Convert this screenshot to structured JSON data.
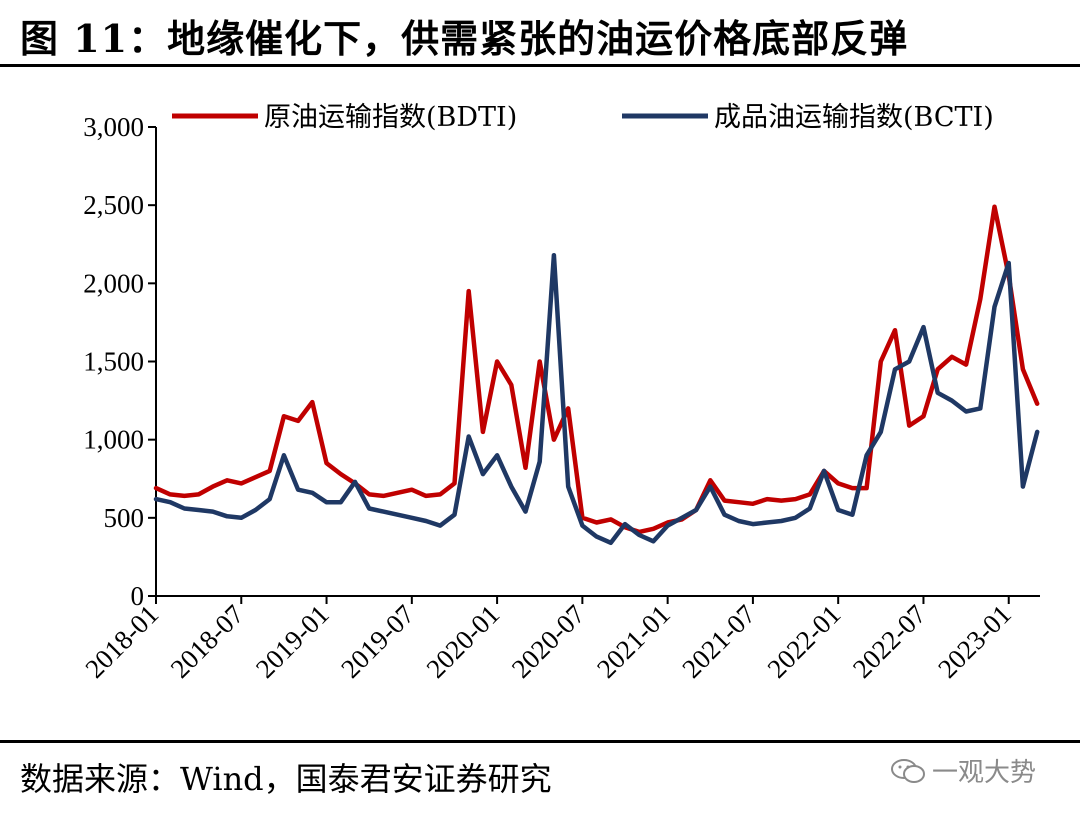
{
  "figure": {
    "title": "图 11：地缘催化下，供需紧张的油运价格底部反弹",
    "source": "数据来源：Wind，国泰君安证券研究",
    "watermark": "一观大势"
  },
  "chart_data": {
    "type": "line",
    "title": "",
    "xlabel": "",
    "ylabel": "",
    "ylim": [
      0,
      3000
    ],
    "yticks": [
      0,
      500,
      1000,
      1500,
      2000,
      2500,
      3000
    ],
    "ytick_labels": [
      "0",
      "500",
      "1,000",
      "1,500",
      "2,000",
      "2,500",
      "3,000"
    ],
    "xlim": [
      "2018-01",
      "2023-03"
    ],
    "xtick_labels": [
      "2018-01",
      "2018-07",
      "2019-01",
      "2019-07",
      "2020-01",
      "2020-07",
      "2021-01",
      "2021-07",
      "2022-01",
      "2022-07",
      "2023-01"
    ],
    "grid": false,
    "legend_position": "top",
    "series": [
      {
        "name": "原油运输指数(BDTI)",
        "color": "#C00000",
        "x": [
          "2018-01",
          "2018-02",
          "2018-03",
          "2018-04",
          "2018-05",
          "2018-06",
          "2018-07",
          "2018-08",
          "2018-09",
          "2018-10",
          "2018-11",
          "2018-12",
          "2019-01",
          "2019-02",
          "2019-03",
          "2019-04",
          "2019-05",
          "2019-06",
          "2019-07",
          "2019-08",
          "2019-09",
          "2019-10",
          "2019-11",
          "2019-12",
          "2020-01",
          "2020-02",
          "2020-03",
          "2020-04",
          "2020-05",
          "2020-06",
          "2020-07",
          "2020-08",
          "2020-09",
          "2020-10",
          "2020-11",
          "2020-12",
          "2021-01",
          "2021-02",
          "2021-03",
          "2021-04",
          "2021-05",
          "2021-06",
          "2021-07",
          "2021-08",
          "2021-09",
          "2021-10",
          "2021-11",
          "2021-12",
          "2022-01",
          "2022-02",
          "2022-03",
          "2022-04",
          "2022-05",
          "2022-06",
          "2022-07",
          "2022-08",
          "2022-09",
          "2022-10",
          "2022-11",
          "2022-12",
          "2023-01",
          "2023-02",
          "2023-03"
        ],
        "values": [
          690,
          650,
          640,
          650,
          700,
          740,
          720,
          760,
          800,
          1150,
          1120,
          1240,
          850,
          780,
          720,
          650,
          640,
          660,
          680,
          640,
          650,
          720,
          1950,
          1050,
          1500,
          1350,
          820,
          1500,
          1000,
          1200,
          500,
          470,
          490,
          440,
          410,
          430,
          470,
          490,
          550,
          740,
          610,
          600,
          590,
          620,
          610,
          620,
          650,
          800,
          720,
          690,
          690,
          1500,
          1700,
          1090,
          1150,
          1450,
          1530,
          1480,
          1900,
          2490,
          2050,
          1450,
          1230
        ]
      },
      {
        "name": "成品油运输指数(BCTI)",
        "color": "#1F3864",
        "x": [
          "2018-01",
          "2018-02",
          "2018-03",
          "2018-04",
          "2018-05",
          "2018-06",
          "2018-07",
          "2018-08",
          "2018-09",
          "2018-10",
          "2018-11",
          "2018-12",
          "2019-01",
          "2019-02",
          "2019-03",
          "2019-04",
          "2019-05",
          "2019-06",
          "2019-07",
          "2019-08",
          "2019-09",
          "2019-10",
          "2019-11",
          "2019-12",
          "2020-01",
          "2020-02",
          "2020-03",
          "2020-04",
          "2020-05",
          "2020-06",
          "2020-07",
          "2020-08",
          "2020-09",
          "2020-10",
          "2020-11",
          "2020-12",
          "2021-01",
          "2021-02",
          "2021-03",
          "2021-04",
          "2021-05",
          "2021-06",
          "2021-07",
          "2021-08",
          "2021-09",
          "2021-10",
          "2021-11",
          "2021-12",
          "2022-01",
          "2022-02",
          "2022-03",
          "2022-04",
          "2022-05",
          "2022-06",
          "2022-07",
          "2022-08",
          "2022-09",
          "2022-10",
          "2022-11",
          "2022-12",
          "2023-01",
          "2023-02",
          "2023-03"
        ],
        "values": [
          620,
          600,
          560,
          550,
          540,
          510,
          500,
          550,
          620,
          900,
          680,
          660,
          600,
          600,
          730,
          560,
          540,
          520,
          500,
          480,
          450,
          520,
          1020,
          780,
          900,
          700,
          540,
          860,
          2180,
          700,
          450,
          380,
          340,
          460,
          390,
          350,
          450,
          500,
          550,
          700,
          520,
          480,
          460,
          470,
          480,
          500,
          560,
          800,
          550,
          520,
          900,
          1050,
          1450,
          1500,
          1720,
          1300,
          1250,
          1180,
          1200,
          1850,
          2130,
          700,
          1050
        ]
      }
    ]
  }
}
